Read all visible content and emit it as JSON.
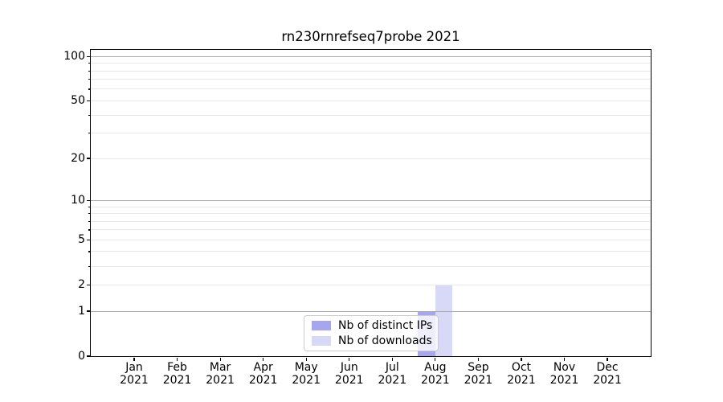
{
  "title": "rn230rnrefseq7probe 2021",
  "chart_data": {
    "type": "bar",
    "title": "rn230rnrefseq7probe 2021",
    "categories": [
      "Jan 2021",
      "Feb 2021",
      "Mar 2021",
      "Apr 2021",
      "May 2021",
      "Jun 2021",
      "Jul 2021",
      "Aug 2021",
      "Sep 2021",
      "Oct 2021",
      "Nov 2021",
      "Dec 2021"
    ],
    "series": [
      {
        "name": "Nb of distinct IPs",
        "color": "#a6a6ec",
        "values": [
          0,
          0,
          0,
          0,
          0,
          0,
          0,
          1,
          0,
          0,
          0,
          0
        ]
      },
      {
        "name": "Nb of downloads",
        "color": "#d8d8f7",
        "values": [
          0,
          0,
          0,
          0,
          0,
          0,
          0,
          2,
          0,
          0,
          0,
          0
        ]
      }
    ],
    "xlabel": "",
    "ylabel": "",
    "yscale": "log1p",
    "ylim": [
      0,
      110.8
    ],
    "ytick_labels": [
      "0",
      "1",
      "2",
      "5",
      "10",
      "20",
      "50",
      "100"
    ],
    "ytick_values": [
      0,
      1,
      2,
      5,
      10,
      20,
      50,
      100
    ],
    "major_gridline_values": [
      1,
      10,
      100
    ],
    "minor_gridline_values": [
      2,
      3,
      4,
      5,
      6,
      7,
      8,
      9,
      20,
      30,
      40,
      50,
      60,
      70,
      80,
      90
    ],
    "grid": "horizontal",
    "legend_position": "lower center, inside axes"
  },
  "colors": {
    "major_grid": "#ababab",
    "minor_grid": "#e8e8e8",
    "spine": "#000000",
    "legend_border": "#cccccc",
    "legend_bg": "rgba(255,255,255,0.8)",
    "text": "#000000"
  }
}
